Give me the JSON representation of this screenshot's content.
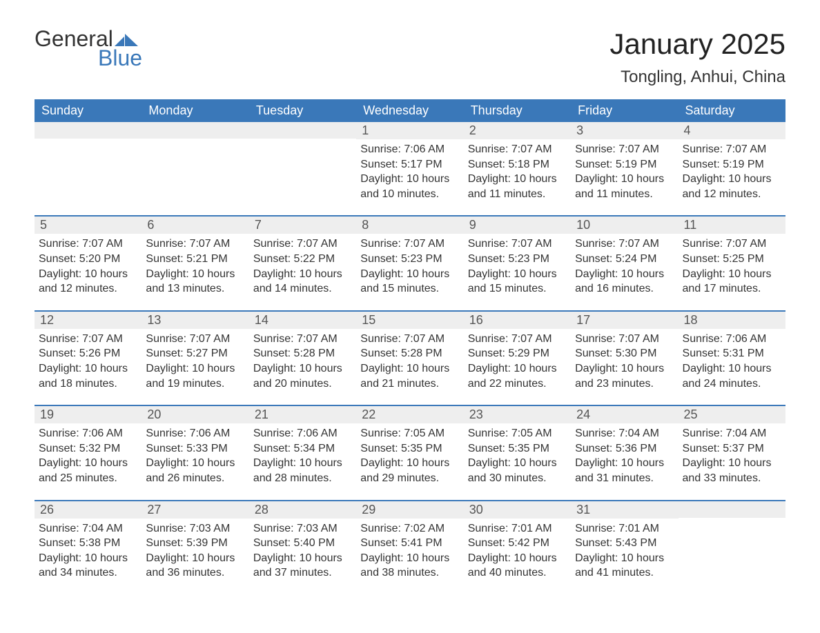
{
  "brand": {
    "word1": "General",
    "word2": "Blue",
    "accent_color": "#3a78b9"
  },
  "title": "January 2025",
  "location": "Tongling, Anhui, China",
  "style": {
    "header_bg": "#3a78b9",
    "header_text": "#ffffff",
    "daynum_bg": "#eeeeee",
    "body_text": "#333333",
    "rule_color": "#3a78b9",
    "title_fontsize": 42,
    "location_fontsize": 24,
    "weekday_fontsize": 18,
    "body_fontsize": 16
  },
  "weekdays": [
    "Sunday",
    "Monday",
    "Tuesday",
    "Wednesday",
    "Thursday",
    "Friday",
    "Saturday"
  ],
  "weeks": [
    [
      {
        "blank": true
      },
      {
        "blank": true
      },
      {
        "blank": true
      },
      {
        "n": "1",
        "sunrise": "7:06 AM",
        "sunset": "5:17 PM",
        "daylight": "10 hours and 10 minutes."
      },
      {
        "n": "2",
        "sunrise": "7:07 AM",
        "sunset": "5:18 PM",
        "daylight": "10 hours and 11 minutes."
      },
      {
        "n": "3",
        "sunrise": "7:07 AM",
        "sunset": "5:19 PM",
        "daylight": "10 hours and 11 minutes."
      },
      {
        "n": "4",
        "sunrise": "7:07 AM",
        "sunset": "5:19 PM",
        "daylight": "10 hours and 12 minutes."
      }
    ],
    [
      {
        "n": "5",
        "sunrise": "7:07 AM",
        "sunset": "5:20 PM",
        "daylight": "10 hours and 12 minutes."
      },
      {
        "n": "6",
        "sunrise": "7:07 AM",
        "sunset": "5:21 PM",
        "daylight": "10 hours and 13 minutes."
      },
      {
        "n": "7",
        "sunrise": "7:07 AM",
        "sunset": "5:22 PM",
        "daylight": "10 hours and 14 minutes."
      },
      {
        "n": "8",
        "sunrise": "7:07 AM",
        "sunset": "5:23 PM",
        "daylight": "10 hours and 15 minutes."
      },
      {
        "n": "9",
        "sunrise": "7:07 AM",
        "sunset": "5:23 PM",
        "daylight": "10 hours and 15 minutes."
      },
      {
        "n": "10",
        "sunrise": "7:07 AM",
        "sunset": "5:24 PM",
        "daylight": "10 hours and 16 minutes."
      },
      {
        "n": "11",
        "sunrise": "7:07 AM",
        "sunset": "5:25 PM",
        "daylight": "10 hours and 17 minutes."
      }
    ],
    [
      {
        "n": "12",
        "sunrise": "7:07 AM",
        "sunset": "5:26 PM",
        "daylight": "10 hours and 18 minutes."
      },
      {
        "n": "13",
        "sunrise": "7:07 AM",
        "sunset": "5:27 PM",
        "daylight": "10 hours and 19 minutes."
      },
      {
        "n": "14",
        "sunrise": "7:07 AM",
        "sunset": "5:28 PM",
        "daylight": "10 hours and 20 minutes."
      },
      {
        "n": "15",
        "sunrise": "7:07 AM",
        "sunset": "5:28 PM",
        "daylight": "10 hours and 21 minutes."
      },
      {
        "n": "16",
        "sunrise": "7:07 AM",
        "sunset": "5:29 PM",
        "daylight": "10 hours and 22 minutes."
      },
      {
        "n": "17",
        "sunrise": "7:07 AM",
        "sunset": "5:30 PM",
        "daylight": "10 hours and 23 minutes."
      },
      {
        "n": "18",
        "sunrise": "7:06 AM",
        "sunset": "5:31 PM",
        "daylight": "10 hours and 24 minutes."
      }
    ],
    [
      {
        "n": "19",
        "sunrise": "7:06 AM",
        "sunset": "5:32 PM",
        "daylight": "10 hours and 25 minutes."
      },
      {
        "n": "20",
        "sunrise": "7:06 AM",
        "sunset": "5:33 PM",
        "daylight": "10 hours and 26 minutes."
      },
      {
        "n": "21",
        "sunrise": "7:06 AM",
        "sunset": "5:34 PM",
        "daylight": "10 hours and 28 minutes."
      },
      {
        "n": "22",
        "sunrise": "7:05 AM",
        "sunset": "5:35 PM",
        "daylight": "10 hours and 29 minutes."
      },
      {
        "n": "23",
        "sunrise": "7:05 AM",
        "sunset": "5:35 PM",
        "daylight": "10 hours and 30 minutes."
      },
      {
        "n": "24",
        "sunrise": "7:04 AM",
        "sunset": "5:36 PM",
        "daylight": "10 hours and 31 minutes."
      },
      {
        "n": "25",
        "sunrise": "7:04 AM",
        "sunset": "5:37 PM",
        "daylight": "10 hours and 33 minutes."
      }
    ],
    [
      {
        "n": "26",
        "sunrise": "7:04 AM",
        "sunset": "5:38 PM",
        "daylight": "10 hours and 34 minutes."
      },
      {
        "n": "27",
        "sunrise": "7:03 AM",
        "sunset": "5:39 PM",
        "daylight": "10 hours and 36 minutes."
      },
      {
        "n": "28",
        "sunrise": "7:03 AM",
        "sunset": "5:40 PM",
        "daylight": "10 hours and 37 minutes."
      },
      {
        "n": "29",
        "sunrise": "7:02 AM",
        "sunset": "5:41 PM",
        "daylight": "10 hours and 38 minutes."
      },
      {
        "n": "30",
        "sunrise": "7:01 AM",
        "sunset": "5:42 PM",
        "daylight": "10 hours and 40 minutes."
      },
      {
        "n": "31",
        "sunrise": "7:01 AM",
        "sunset": "5:43 PM",
        "daylight": "10 hours and 41 minutes."
      },
      {
        "blank": true
      }
    ]
  ],
  "labels": {
    "sunrise": "Sunrise:",
    "sunset": "Sunset:",
    "daylight": "Daylight:"
  }
}
